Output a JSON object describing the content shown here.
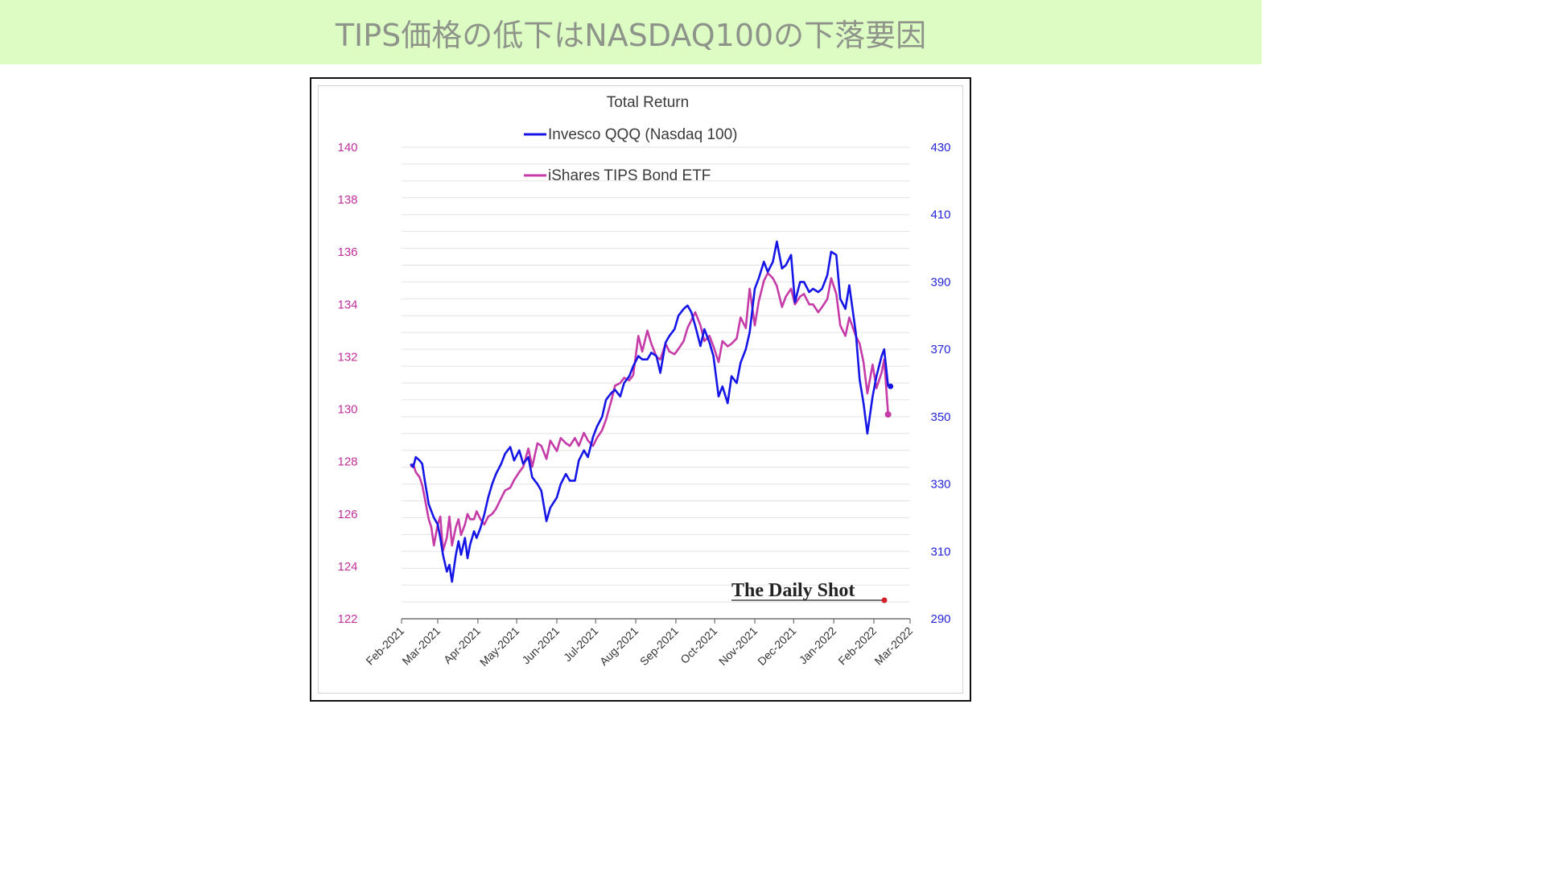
{
  "page": {
    "title": "TIPS価格の低下はNASDAQ100の下落要因"
  },
  "colors": {
    "banner_bg": "#dcfcc4",
    "qqq": "#1515e6",
    "tips": "#c53ba8",
    "left_axis": "#c0309a",
    "right_axis": "#2424d8"
  },
  "chart_data": {
    "type": "line",
    "title": "Total Return",
    "legend": [
      "Invesco QQQ (Nasdaq 100)",
      "iShares TIPS Bond ETF"
    ],
    "legend_position": "top-center",
    "grid": true,
    "watermark": "The Daily Shot",
    "x_ticks": [
      "Feb-2021",
      "Mar-2021",
      "Apr-2021",
      "May-2021",
      "Jun-2021",
      "Jul-2021",
      "Aug-2021",
      "Sep-2021",
      "Oct-2021",
      "Nov-2021",
      "Dec-2021",
      "Jan-2022",
      "Feb-2022",
      "Mar-2022"
    ],
    "y_left": {
      "label": "",
      "min": 122,
      "max": 140,
      "ticks": [
        122,
        124,
        126,
        128,
        130,
        132,
        134,
        136,
        138,
        140
      ]
    },
    "y_right": {
      "label": "",
      "min": 290,
      "max": 430,
      "ticks": [
        290,
        310,
        330,
        350,
        370,
        390,
        410,
        430
      ]
    },
    "x_range": [
      "2021-02-01",
      "2022-03-01"
    ],
    "series": [
      {
        "name": "Invesco QQQ (Nasdaq 100)",
        "axis": "right",
        "points": [
          [
            "2021-02-08",
            336
          ],
          [
            "2021-02-10",
            335
          ],
          [
            "2021-02-12",
            338
          ],
          [
            "2021-02-15",
            337
          ],
          [
            "2021-02-17",
            336
          ],
          [
            "2021-02-19",
            331
          ],
          [
            "2021-02-22",
            324
          ],
          [
            "2021-02-24",
            322
          ],
          [
            "2021-02-26",
            320
          ],
          [
            "2021-03-01",
            318
          ],
          [
            "2021-03-03",
            314
          ],
          [
            "2021-03-05",
            309
          ],
          [
            "2021-03-08",
            304
          ],
          [
            "2021-03-10",
            306
          ],
          [
            "2021-03-12",
            301
          ],
          [
            "2021-03-15",
            309
          ],
          [
            "2021-03-17",
            313
          ],
          [
            "2021-03-19",
            309
          ],
          [
            "2021-03-22",
            314
          ],
          [
            "2021-03-24",
            308
          ],
          [
            "2021-03-26",
            312
          ],
          [
            "2021-03-29",
            316
          ],
          [
            "2021-03-31",
            314
          ],
          [
            "2021-04-03",
            317
          ],
          [
            "2021-04-06",
            321
          ],
          [
            "2021-04-09",
            326
          ],
          [
            "2021-04-12",
            330
          ],
          [
            "2021-04-15",
            333
          ],
          [
            "2021-04-19",
            336
          ],
          [
            "2021-04-22",
            339
          ],
          [
            "2021-04-26",
            341
          ],
          [
            "2021-04-29",
            337
          ],
          [
            "2021-05-03",
            340
          ],
          [
            "2021-05-06",
            336
          ],
          [
            "2021-05-10",
            338
          ],
          [
            "2021-05-13",
            332
          ],
          [
            "2021-05-17",
            330
          ],
          [
            "2021-05-20",
            328
          ],
          [
            "2021-05-24",
            319
          ],
          [
            "2021-05-27",
            323
          ],
          [
            "2021-06-01",
            326
          ],
          [
            "2021-06-04",
            330
          ],
          [
            "2021-06-08",
            333
          ],
          [
            "2021-06-11",
            331
          ],
          [
            "2021-06-15",
            331
          ],
          [
            "2021-06-18",
            337
          ],
          [
            "2021-06-22",
            340
          ],
          [
            "2021-06-25",
            338
          ],
          [
            "2021-06-29",
            344
          ],
          [
            "2021-07-02",
            347
          ],
          [
            "2021-07-06",
            350
          ],
          [
            "2021-07-09",
            355
          ],
          [
            "2021-07-13",
            357
          ],
          [
            "2021-07-16",
            358
          ],
          [
            "2021-07-20",
            356
          ],
          [
            "2021-07-23",
            360
          ],
          [
            "2021-07-27",
            362
          ],
          [
            "2021-07-30",
            365
          ],
          [
            "2021-08-03",
            368
          ],
          [
            "2021-08-06",
            367
          ],
          [
            "2021-08-10",
            367
          ],
          [
            "2021-08-13",
            369
          ],
          [
            "2021-08-17",
            368
          ],
          [
            "2021-08-20",
            363
          ],
          [
            "2021-08-24",
            372
          ],
          [
            "2021-08-27",
            374
          ],
          [
            "2021-08-31",
            376
          ],
          [
            "2021-09-03",
            380
          ],
          [
            "2021-09-07",
            382
          ],
          [
            "2021-09-10",
            383
          ],
          [
            "2021-09-13",
            381
          ],
          [
            "2021-09-16",
            377
          ],
          [
            "2021-09-20",
            371
          ],
          [
            "2021-09-23",
            376
          ],
          [
            "2021-09-27",
            372
          ],
          [
            "2021-09-30",
            368
          ],
          [
            "2021-10-04",
            356
          ],
          [
            "2021-10-07",
            359
          ],
          [
            "2021-10-11",
            354
          ],
          [
            "2021-10-14",
            362
          ],
          [
            "2021-10-18",
            360
          ],
          [
            "2021-10-21",
            366
          ],
          [
            "2021-10-25",
            370
          ],
          [
            "2021-10-28",
            375
          ],
          [
            "2021-11-01",
            388
          ],
          [
            "2021-11-04",
            391
          ],
          [
            "2021-11-08",
            396
          ],
          [
            "2021-11-11",
            393
          ],
          [
            "2021-11-15",
            396
          ],
          [
            "2021-11-18",
            402
          ],
          [
            "2021-11-22",
            394
          ],
          [
            "2021-11-25",
            395
          ],
          [
            "2021-11-29",
            398
          ],
          [
            "2021-12-02",
            384
          ],
          [
            "2021-12-06",
            390
          ],
          [
            "2021-12-09",
            390
          ],
          [
            "2021-12-13",
            387
          ],
          [
            "2021-12-16",
            388
          ],
          [
            "2021-12-20",
            387
          ],
          [
            "2021-12-23",
            388
          ],
          [
            "2021-12-27",
            392
          ],
          [
            "2021-12-30",
            399
          ],
          [
            "2022-01-03",
            398
          ],
          [
            "2022-01-06",
            385
          ],
          [
            "2022-01-10",
            382
          ],
          [
            "2022-01-13",
            389
          ],
          [
            "2022-01-18",
            375
          ],
          [
            "2022-01-21",
            361
          ],
          [
            "2022-01-24",
            354
          ],
          [
            "2022-01-27",
            345
          ],
          [
            "2022-01-31",
            356
          ],
          [
            "2022-02-03",
            362
          ],
          [
            "2022-02-07",
            368
          ],
          [
            "2022-02-09",
            370
          ],
          [
            "2022-02-12",
            359
          ]
        ]
      },
      {
        "name": "iShares TIPS Bond ETF",
        "axis": "left",
        "points": [
          [
            "2021-02-08",
            127.8
          ],
          [
            "2021-02-10",
            127.9
          ],
          [
            "2021-02-12",
            127.6
          ],
          [
            "2021-02-15",
            127.4
          ],
          [
            "2021-02-17",
            127.1
          ],
          [
            "2021-02-19",
            126.6
          ],
          [
            "2021-02-22",
            125.8
          ],
          [
            "2021-02-24",
            125.5
          ],
          [
            "2021-02-26",
            124.8
          ],
          [
            "2021-03-01",
            125.6
          ],
          [
            "2021-03-03",
            125.9
          ],
          [
            "2021-03-05",
            124.6
          ],
          [
            "2021-03-08",
            125.1
          ],
          [
            "2021-03-10",
            125.9
          ],
          [
            "2021-03-12",
            124.8
          ],
          [
            "2021-03-15",
            125.5
          ],
          [
            "2021-03-17",
            125.8
          ],
          [
            "2021-03-19",
            125.2
          ],
          [
            "2021-03-22",
            125.6
          ],
          [
            "2021-03-24",
            126.0
          ],
          [
            "2021-03-26",
            125.8
          ],
          [
            "2021-03-29",
            125.8
          ],
          [
            "2021-03-31",
            126.1
          ],
          [
            "2021-04-03",
            125.8
          ],
          [
            "2021-04-06",
            125.6
          ],
          [
            "2021-04-09",
            125.9
          ],
          [
            "2021-04-12",
            126.0
          ],
          [
            "2021-04-15",
            126.2
          ],
          [
            "2021-04-19",
            126.6
          ],
          [
            "2021-04-22",
            126.9
          ],
          [
            "2021-04-26",
            127.0
          ],
          [
            "2021-04-29",
            127.3
          ],
          [
            "2021-05-03",
            127.6
          ],
          [
            "2021-05-06",
            127.8
          ],
          [
            "2021-05-10",
            128.5
          ],
          [
            "2021-05-13",
            127.8
          ],
          [
            "2021-05-17",
            128.7
          ],
          [
            "2021-05-20",
            128.6
          ],
          [
            "2021-05-24",
            128.1
          ],
          [
            "2021-05-27",
            128.8
          ],
          [
            "2021-06-01",
            128.4
          ],
          [
            "2021-06-04",
            128.9
          ],
          [
            "2021-06-08",
            128.7
          ],
          [
            "2021-06-11",
            128.6
          ],
          [
            "2021-06-15",
            128.9
          ],
          [
            "2021-06-18",
            128.6
          ],
          [
            "2021-06-22",
            129.1
          ],
          [
            "2021-06-25",
            128.8
          ],
          [
            "2021-06-29",
            128.6
          ],
          [
            "2021-07-02",
            128.9
          ],
          [
            "2021-07-06",
            129.2
          ],
          [
            "2021-07-09",
            129.6
          ],
          [
            "2021-07-13",
            130.3
          ],
          [
            "2021-07-16",
            130.9
          ],
          [
            "2021-07-20",
            131.0
          ],
          [
            "2021-07-23",
            131.2
          ],
          [
            "2021-07-27",
            131.1
          ],
          [
            "2021-07-30",
            131.3
          ],
          [
            "2021-08-03",
            132.8
          ],
          [
            "2021-08-06",
            132.2
          ],
          [
            "2021-08-10",
            133.0
          ],
          [
            "2021-08-13",
            132.5
          ],
          [
            "2021-08-17",
            132.0
          ],
          [
            "2021-08-20",
            131.9
          ],
          [
            "2021-08-24",
            132.5
          ],
          [
            "2021-08-27",
            132.2
          ],
          [
            "2021-08-31",
            132.1
          ],
          [
            "2021-09-03",
            132.3
          ],
          [
            "2021-09-07",
            132.6
          ],
          [
            "2021-09-10",
            133.1
          ],
          [
            "2021-09-13",
            133.4
          ],
          [
            "2021-09-16",
            133.7
          ],
          [
            "2021-09-20",
            133.2
          ],
          [
            "2021-09-23",
            132.6
          ],
          [
            "2021-09-27",
            132.8
          ],
          [
            "2021-09-30",
            132.4
          ],
          [
            "2021-10-04",
            131.8
          ],
          [
            "2021-10-07",
            132.6
          ],
          [
            "2021-10-11",
            132.4
          ],
          [
            "2021-10-14",
            132.5
          ],
          [
            "2021-10-18",
            132.7
          ],
          [
            "2021-10-21",
            133.5
          ],
          [
            "2021-10-25",
            133.1
          ],
          [
            "2021-10-28",
            134.6
          ],
          [
            "2021-11-01",
            133.2
          ],
          [
            "2021-11-04",
            134.1
          ],
          [
            "2021-11-08",
            134.9
          ],
          [
            "2021-11-11",
            135.2
          ],
          [
            "2021-11-15",
            135.0
          ],
          [
            "2021-11-18",
            134.7
          ],
          [
            "2021-11-22",
            133.9
          ],
          [
            "2021-11-25",
            134.3
          ],
          [
            "2021-11-29",
            134.6
          ],
          [
            "2021-12-02",
            134.0
          ],
          [
            "2021-12-06",
            134.3
          ],
          [
            "2021-12-09",
            134.4
          ],
          [
            "2021-12-13",
            134.0
          ],
          [
            "2021-12-16",
            134.0
          ],
          [
            "2021-12-20",
            133.7
          ],
          [
            "2021-12-23",
            133.9
          ],
          [
            "2021-12-27",
            134.2
          ],
          [
            "2021-12-30",
            135.0
          ],
          [
            "2022-01-03",
            134.4
          ],
          [
            "2022-01-06",
            133.2
          ],
          [
            "2022-01-10",
            132.8
          ],
          [
            "2022-01-13",
            133.5
          ],
          [
            "2022-01-18",
            132.8
          ],
          [
            "2022-01-21",
            132.5
          ],
          [
            "2022-01-24",
            131.8
          ],
          [
            "2022-01-27",
            130.6
          ],
          [
            "2022-01-31",
            131.7
          ],
          [
            "2022-02-03",
            130.8
          ],
          [
            "2022-02-07",
            131.4
          ],
          [
            "2022-02-09",
            131.9
          ],
          [
            "2022-02-12",
            129.8
          ]
        ]
      }
    ]
  }
}
